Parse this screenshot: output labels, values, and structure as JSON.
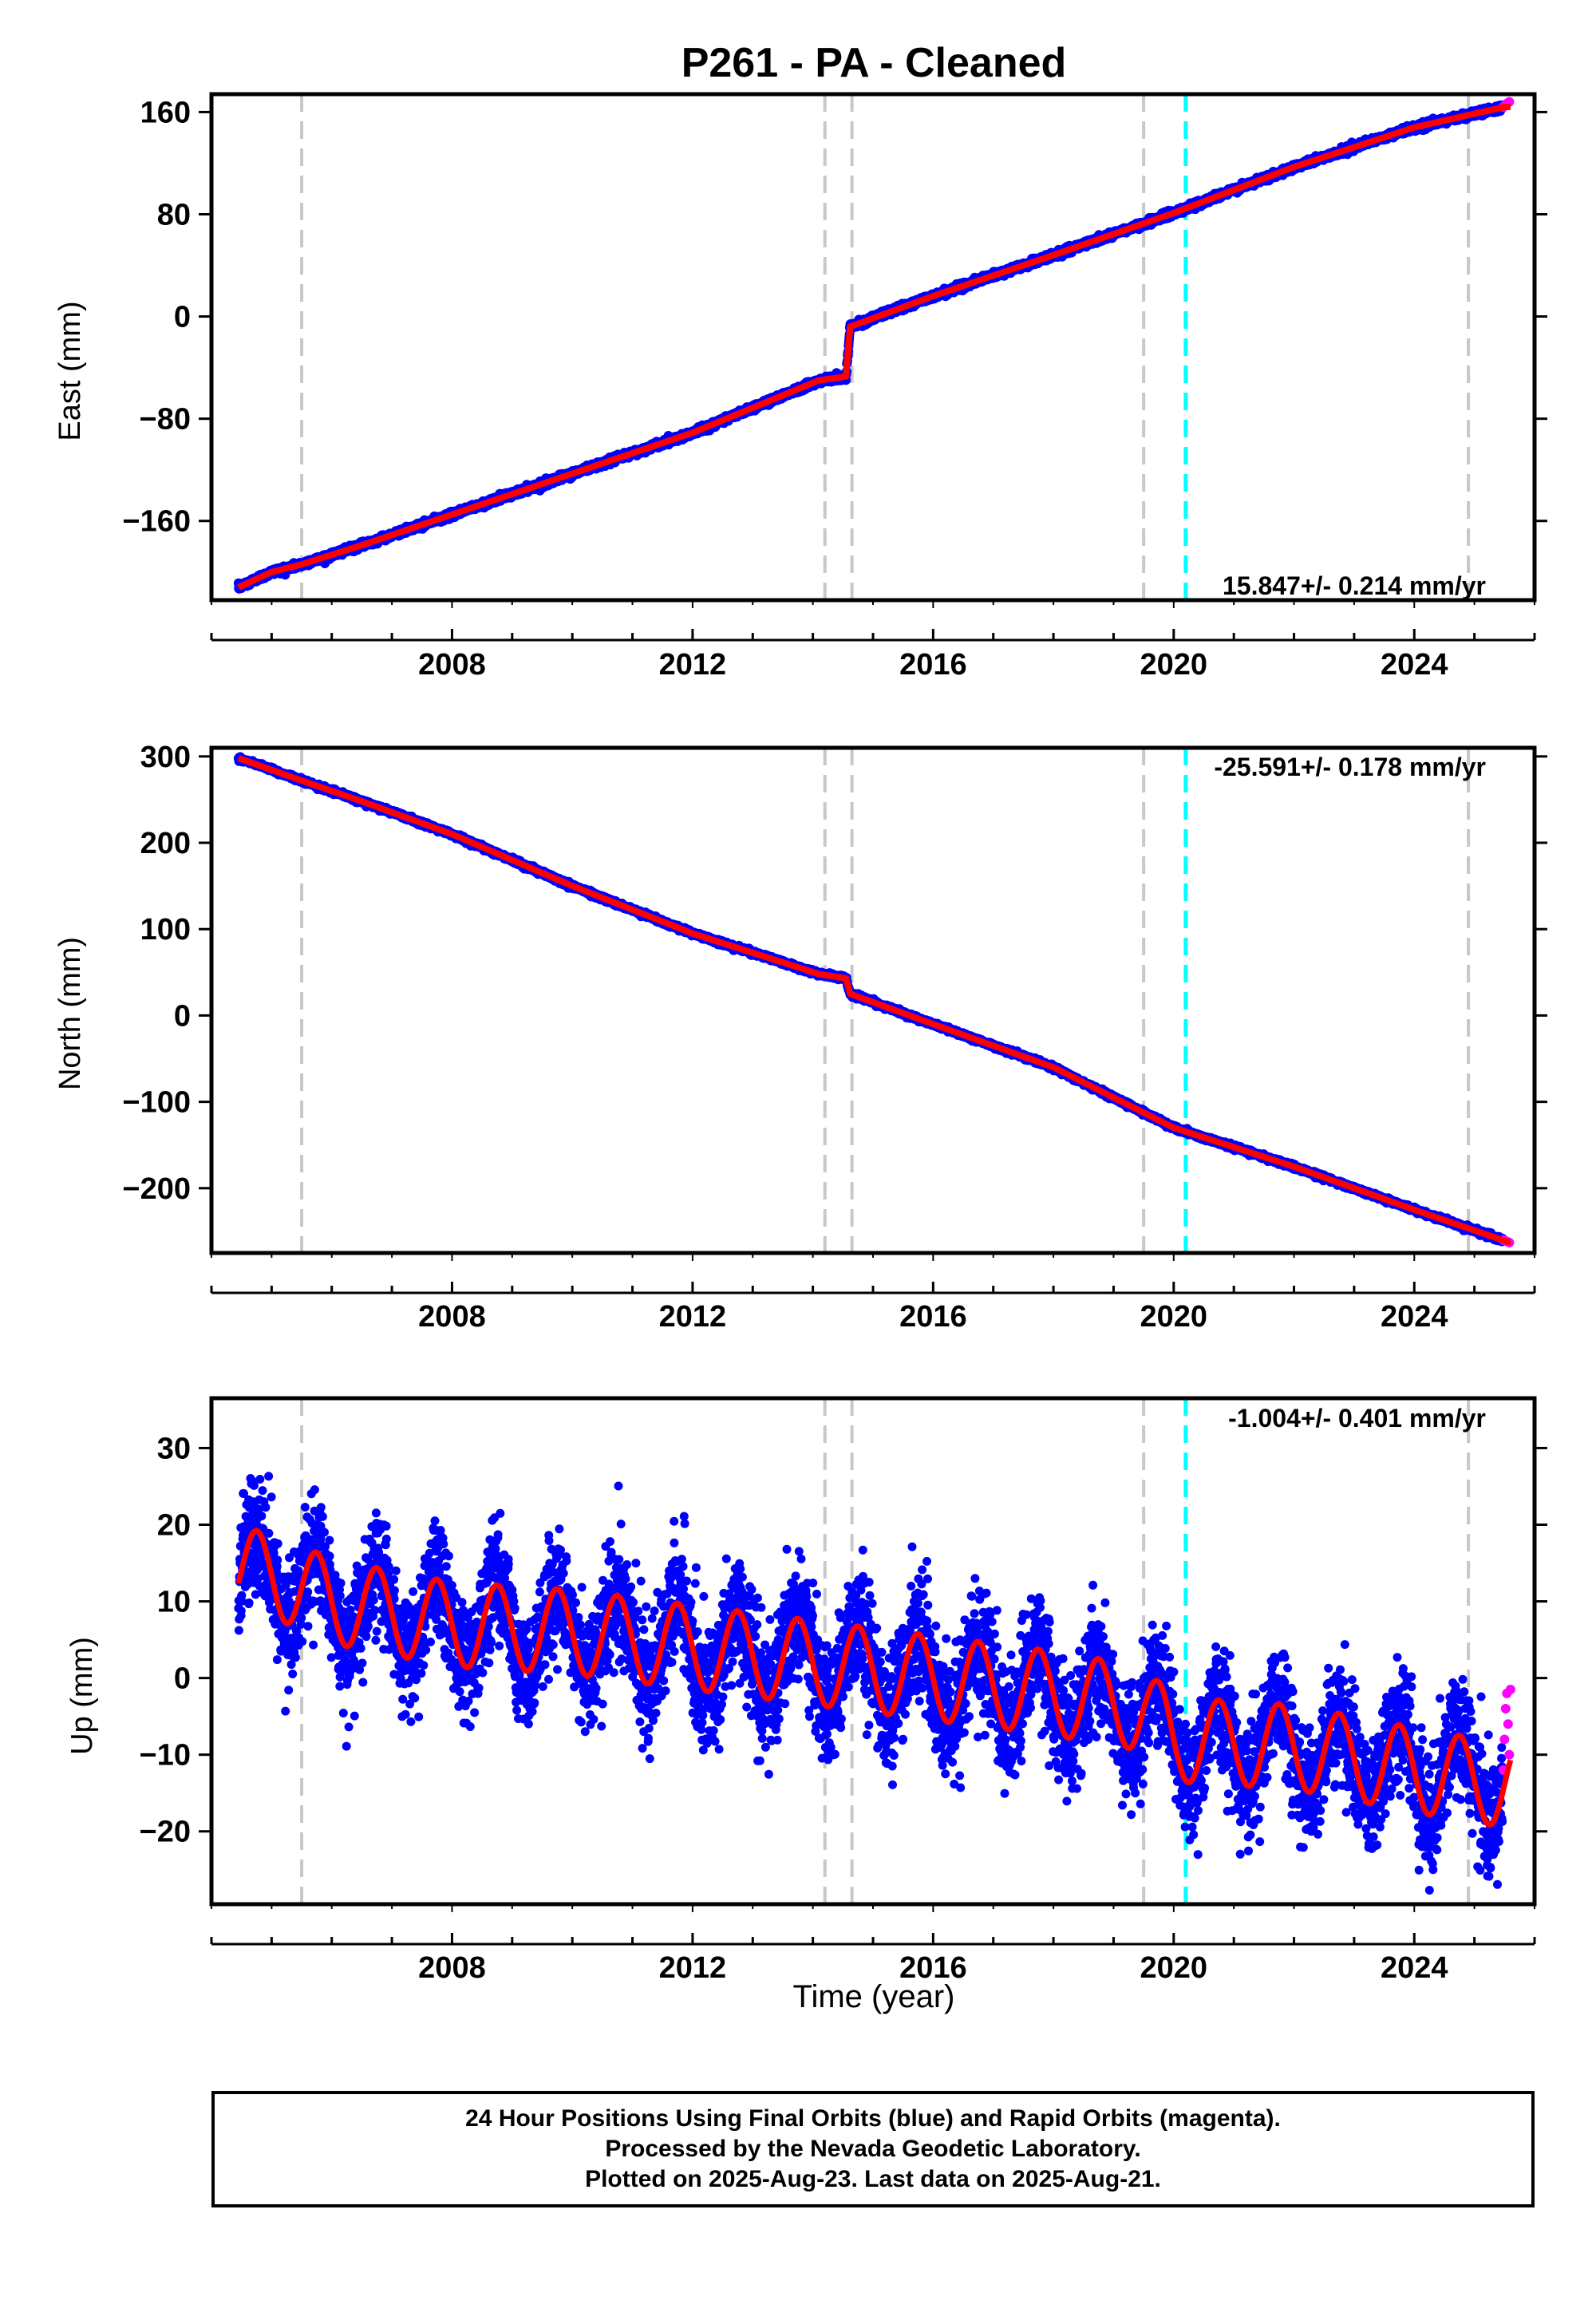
{
  "title": "P261  - PA - Cleaned",
  "colors": {
    "final_orbits": "#0000ff",
    "rapid_orbits": "#ff00ff",
    "model": "#ff0000",
    "event_gray": "#c8c8c8",
    "event_cyan": "#00ffff"
  },
  "chart_data": [
    {
      "type": "scatter",
      "component": "east",
      "ylabel": "East (mm)",
      "xlabel": "",
      "xlim": [
        2004.0,
        2026.0
      ],
      "ylim": [
        -222,
        174
      ],
      "yticks": [
        -160,
        -80,
        0,
        80,
        160
      ],
      "xticks": [
        2008,
        2012,
        2016,
        2020,
        2024
      ],
      "rate_label": "15.847+/- 0.214 mm/yr",
      "rate_mm_per_yr": 15.847,
      "rate_sigma": 0.214,
      "noise_sigma_mm": 1.2,
      "grid": false,
      "model_points": [
        [
          2004.45,
          -212
        ],
        [
          2005.0,
          -200
        ],
        [
          2005.5,
          -194
        ],
        [
          2006.5,
          -179
        ],
        [
          2008.0,
          -155
        ],
        [
          2010.0,
          -123
        ],
        [
          2012.0,
          -91
        ],
        [
          2014.1,
          -50
        ],
        [
          2014.55,
          -47
        ],
        [
          2014.62,
          -8
        ],
        [
          2016.0,
          16
        ],
        [
          2018.0,
          48
        ],
        [
          2020.0,
          81
        ],
        [
          2022.0,
          117
        ],
        [
          2024.0,
          148
        ],
        [
          2025.5,
          164
        ]
      ],
      "rapid_points": [
        [
          2025.48,
          164
        ],
        [
          2025.52,
          166
        ],
        [
          2025.55,
          167
        ],
        [
          2025.58,
          168
        ]
      ],
      "event_lines": [
        {
          "x": 2005.5,
          "type": "gray"
        },
        {
          "x": 2014.2,
          "type": "gray"
        },
        {
          "x": 2014.65,
          "type": "gray"
        },
        {
          "x": 2019.5,
          "type": "gray"
        },
        {
          "x": 2020.2,
          "type": "cyan"
        },
        {
          "x": 2024.9,
          "type": "gray"
        }
      ]
    },
    {
      "type": "scatter",
      "component": "north",
      "ylabel": "North (mm)",
      "xlabel": "",
      "xlim": [
        2004.0,
        2026.0
      ],
      "ylim": [
        -275,
        310
      ],
      "yticks": [
        -200,
        -100,
        0,
        100,
        200,
        300
      ],
      "xticks": [
        2008,
        2012,
        2016,
        2020,
        2024
      ],
      "rate_label": "-25.591+/- 0.178 mm/yr",
      "rate_mm_per_yr": -25.591,
      "rate_sigma": 0.178,
      "noise_sigma_mm": 1.2,
      "grid": false,
      "model_points": [
        [
          2004.45,
          298
        ],
        [
          2005.5,
          272
        ],
        [
          2006.5,
          248
        ],
        [
          2008.0,
          210
        ],
        [
          2010.0,
          150
        ],
        [
          2012.0,
          95
        ],
        [
          2014.1,
          48
        ],
        [
          2014.55,
          43
        ],
        [
          2014.62,
          25
        ],
        [
          2016.0,
          -10
        ],
        [
          2018.0,
          -60
        ],
        [
          2020.0,
          -130
        ],
        [
          2022.0,
          -175
        ],
        [
          2024.0,
          -225
        ],
        [
          2025.55,
          -262
        ]
      ],
      "rapid_points": [
        [
          2025.48,
          -260
        ],
        [
          2025.52,
          -261
        ],
        [
          2025.55,
          -262
        ],
        [
          2025.58,
          -263
        ]
      ],
      "event_lines": [
        {
          "x": 2005.5,
          "type": "gray"
        },
        {
          "x": 2014.2,
          "type": "gray"
        },
        {
          "x": 2014.65,
          "type": "gray"
        },
        {
          "x": 2019.5,
          "type": "gray"
        },
        {
          "x": 2020.2,
          "type": "cyan"
        },
        {
          "x": 2024.9,
          "type": "gray"
        }
      ]
    },
    {
      "type": "scatter",
      "component": "up",
      "ylabel": "Up (mm)",
      "xlabel": "Time (year)",
      "xlim": [
        2004.0,
        2026.0
      ],
      "ylim": [
        -29.5,
        36.5
      ],
      "yticks": [
        -20,
        -10,
        0,
        10,
        20,
        30
      ],
      "xticks": [
        2008,
        2012,
        2016,
        2020,
        2024
      ],
      "rate_label": "-1.004+/- 0.401 mm/yr",
      "rate_mm_per_yr": -1.004,
      "rate_sigma": 0.401,
      "noise_sigma_mm": 3.8,
      "seasonal_amplitude_mm": 5.5,
      "grid": false,
      "model_points": [
        [
          2004.45,
          14
        ],
        [
          2005.0,
          13.5
        ],
        [
          2006.0,
          10
        ],
        [
          2008.0,
          7
        ],
        [
          2010.0,
          6
        ],
        [
          2012.0,
          4
        ],
        [
          2014.0,
          2
        ],
        [
          2016.0,
          0
        ],
        [
          2018.0,
          -2
        ],
        [
          2019.5,
          -4
        ],
        [
          2020.0,
          -8
        ],
        [
          2022.0,
          -9
        ],
        [
          2024.0,
          -12
        ],
        [
          2025.5,
          -14
        ]
      ],
      "rapid_points": [
        [
          2025.48,
          -12
        ],
        [
          2025.5,
          -8
        ],
        [
          2025.52,
          -4
        ],
        [
          2025.54,
          -2
        ],
        [
          2025.56,
          -6
        ],
        [
          2025.58,
          -10
        ],
        [
          2025.6,
          -1.5
        ]
      ],
      "event_lines": [
        {
          "x": 2005.5,
          "type": "gray"
        },
        {
          "x": 2014.2,
          "type": "gray"
        },
        {
          "x": 2014.65,
          "type": "gray"
        },
        {
          "x": 2019.5,
          "type": "gray"
        },
        {
          "x": 2020.2,
          "type": "cyan"
        },
        {
          "x": 2024.9,
          "type": "gray"
        }
      ]
    }
  ],
  "footer": {
    "line1": "24 Hour Positions Using Final Orbits (blue) and Rapid Orbits (magenta).",
    "line2": "Processed by the Nevada Geodetic Laboratory.",
    "line3": "Plotted on 2025-Aug-23. Last data on 2025-Aug-21."
  }
}
